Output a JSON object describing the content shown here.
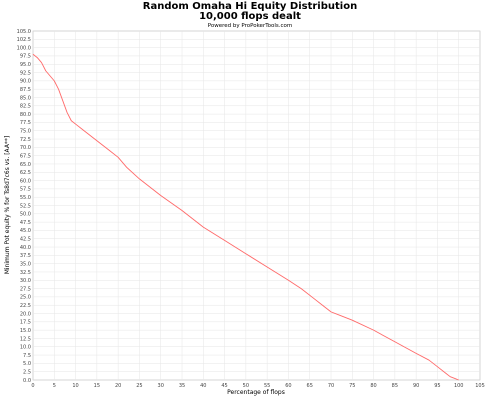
{
  "chart_data": {
    "type": "line",
    "title": "Random Omaha Hi Equity Distribution",
    "subtitle": "10,000 flops dealt",
    "credit": "Powered by ProPokerTools.com",
    "xlabel": "Percentage of flops",
    "ylabel": "Minimum Pot equity % for Ts8d7c6s vs. [AA**]",
    "xlim": [
      0,
      105
    ],
    "ylim": [
      0,
      105
    ],
    "x_ticks": [
      "0",
      "5",
      "10",
      "15",
      "20",
      "25",
      "30",
      "35",
      "40",
      "45",
      "50",
      "55",
      "60",
      "65",
      "70",
      "75",
      "80",
      "85",
      "90",
      "95",
      "100",
      "105"
    ],
    "y_ticks": [
      "0.0",
      "2.5",
      "5.0",
      "7.5",
      "10.0",
      "12.5",
      "15.0",
      "17.5",
      "20.0",
      "22.5",
      "25.0",
      "27.5",
      "30.0",
      "32.5",
      "35.0",
      "37.5",
      "40.0",
      "42.5",
      "45.0",
      "47.5",
      "50.0",
      "52.5",
      "55.0",
      "57.5",
      "60.0",
      "62.5",
      "65.0",
      "67.5",
      "70.0",
      "72.5",
      "75.0",
      "77.5",
      "80.0",
      "82.5",
      "85.0",
      "87.5",
      "90.0",
      "92.5",
      "95.0",
      "97.5",
      "100.0",
      "102.5",
      "105.0"
    ],
    "grid": true,
    "line_color": "#ff6a6a",
    "series": [
      {
        "x": [
          0,
          1,
          2,
          3,
          4,
          5,
          6,
          7,
          8,
          9,
          10,
          12,
          14,
          16,
          18,
          20,
          22,
          25,
          30,
          35,
          40,
          45,
          50,
          55,
          60,
          63,
          66,
          68,
          70,
          72,
          75,
          80,
          85,
          90,
          93,
          95,
          97,
          98,
          99,
          100
        ],
        "y": [
          98,
          97,
          95.5,
          93,
          91.5,
          90,
          87.5,
          84,
          80.5,
          78,
          77,
          75,
          73,
          71,
          69,
          67,
          64,
          60.5,
          55.5,
          51,
          46,
          42,
          38,
          34,
          30,
          27.5,
          24.5,
          22.5,
          20.5,
          19.5,
          18,
          15,
          11.5,
          8,
          6,
          4,
          2,
          1,
          0.5,
          0
        ]
      }
    ]
  }
}
